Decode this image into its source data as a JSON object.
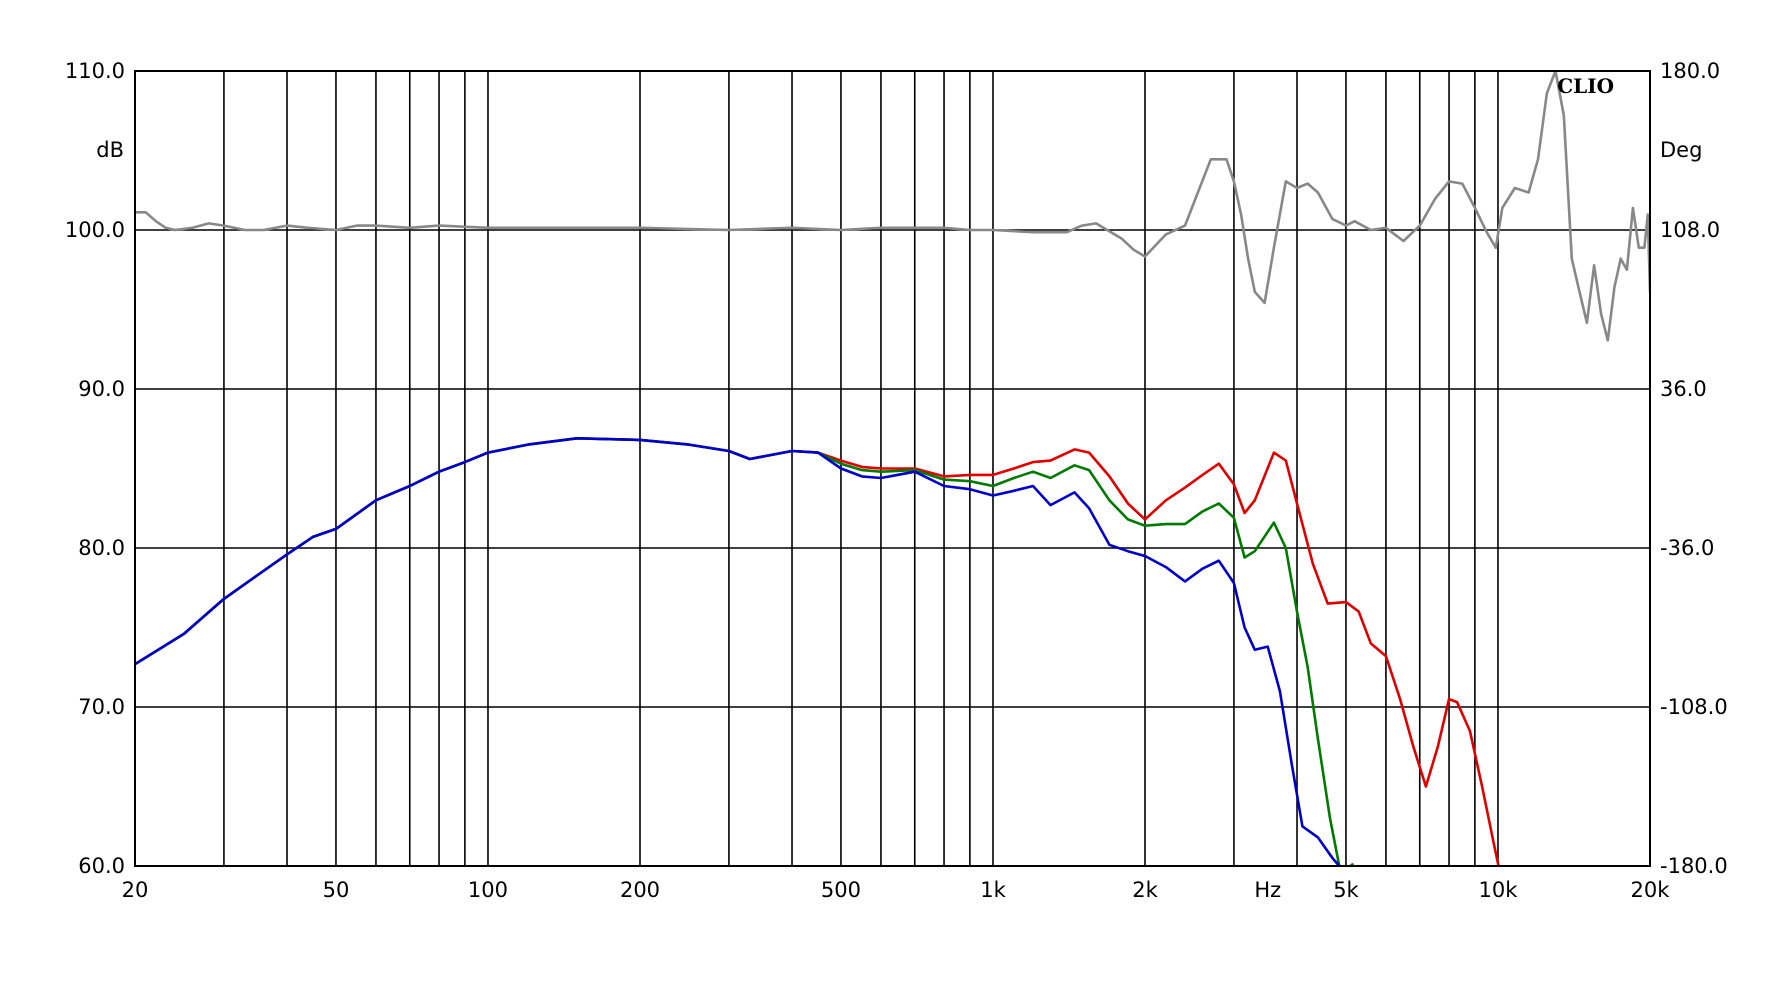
{
  "chart_data": {
    "type": "line",
    "brand": "CLIO",
    "x_scale": "log",
    "xlim": [
      20,
      20000
    ],
    "xlabel": "Hz",
    "x_ticks": [
      {
        "value": 20,
        "label": "20"
      },
      {
        "value": 50,
        "label": "50"
      },
      {
        "value": 100,
        "label": "100"
      },
      {
        "value": 200,
        "label": "200"
      },
      {
        "value": 500,
        "label": "500"
      },
      {
        "value": 1000,
        "label": "1k"
      },
      {
        "value": 2000,
        "label": "2k"
      },
      {
        "value": 5000,
        "label": "5k"
      },
      {
        "value": 10000,
        "label": "10k"
      },
      {
        "value": 20000,
        "label": "20k"
      }
    ],
    "x_unit_label": "Hz",
    "x_unit_position": 3500,
    "x_grid": [
      20,
      30,
      40,
      50,
      60,
      70,
      80,
      90,
      100,
      200,
      300,
      400,
      500,
      600,
      700,
      800,
      900,
      1000,
      2000,
      3000,
      4000,
      5000,
      6000,
      7000,
      8000,
      9000,
      10000,
      20000
    ],
    "y_left": {
      "label": "dB",
      "range": [
        60,
        110
      ],
      "ticks": [
        {
          "value": 110,
          "label": "110.0"
        },
        {
          "value": 100,
          "label": "100.0"
        },
        {
          "value": 90,
          "label": "90.0"
        },
        {
          "value": 80,
          "label": "80.0"
        },
        {
          "value": 70,
          "label": "70.0"
        },
        {
          "value": 60,
          "label": "60.0"
        }
      ]
    },
    "y_right": {
      "label": "Deg",
      "range": [
        -180,
        180
      ],
      "ticks": [
        {
          "value": 180,
          "label": "180.0"
        },
        {
          "value": 108,
          "label": "108.0"
        },
        {
          "value": 36,
          "label": "36.0"
        },
        {
          "value": -36,
          "label": "-36.0"
        },
        {
          "value": -108,
          "label": "-108.0"
        },
        {
          "value": -180,
          "label": "-180.0"
        }
      ]
    },
    "grid": true,
    "series": [
      {
        "color": "#888888",
        "axis": "right",
        "points": [
          [
            20,
            116
          ],
          [
            21,
            116
          ],
          [
            22,
            112
          ],
          [
            23,
            109
          ],
          [
            24,
            108
          ],
          [
            26,
            109
          ],
          [
            28,
            111
          ],
          [
            30,
            110
          ],
          [
            33,
            108
          ],
          [
            36,
            108
          ],
          [
            40,
            110
          ],
          [
            44,
            109
          ],
          [
            50,
            108
          ],
          [
            55,
            110
          ],
          [
            60,
            110
          ],
          [
            70,
            109
          ],
          [
            80,
            110
          ],
          [
            100,
            109
          ],
          [
            150,
            109
          ],
          [
            200,
            109
          ],
          [
            300,
            108
          ],
          [
            400,
            109
          ],
          [
            500,
            108
          ],
          [
            600,
            109
          ],
          [
            700,
            109
          ],
          [
            800,
            109
          ],
          [
            900,
            108
          ],
          [
            1000,
            108
          ],
          [
            1200,
            107
          ],
          [
            1400,
            107
          ],
          [
            1500,
            110
          ],
          [
            1600,
            111
          ],
          [
            1800,
            104
          ],
          [
            1900,
            99
          ],
          [
            2000,
            96
          ],
          [
            2200,
            106
          ],
          [
            2400,
            110
          ],
          [
            2700,
            140
          ],
          [
            2900,
            140
          ],
          [
            3000,
            130
          ],
          [
            3100,
            115
          ],
          [
            3200,
            95
          ],
          [
            3300,
            80
          ],
          [
            3450,
            75
          ],
          [
            3600,
            100
          ],
          [
            3800,
            130
          ],
          [
            4000,
            127
          ],
          [
            4200,
            129
          ],
          [
            4400,
            125
          ],
          [
            4700,
            113
          ],
          [
            5000,
            110
          ],
          [
            5200,
            112
          ],
          [
            5600,
            108
          ],
          [
            6000,
            109
          ],
          [
            6500,
            103
          ],
          [
            7000,
            110
          ],
          [
            7500,
            122
          ],
          [
            8000,
            130
          ],
          [
            8500,
            129
          ],
          [
            9000,
            118
          ],
          [
            9500,
            107
          ],
          [
            9900,
            100
          ],
          [
            10200,
            118
          ],
          [
            10800,
            127
          ],
          [
            11500,
            125
          ],
          [
            12000,
            140
          ],
          [
            12500,
            170
          ],
          [
            13000,
            180
          ],
          [
            13500,
            160
          ],
          [
            14000,
            95
          ],
          [
            14500,
            80
          ],
          [
            15000,
            66
          ],
          [
            15500,
            92
          ],
          [
            16000,
            70
          ],
          [
            16500,
            58
          ],
          [
            17000,
            82
          ],
          [
            17500,
            95
          ],
          [
            18000,
            90
          ],
          [
            18500,
            118
          ],
          [
            19000,
            100
          ],
          [
            19500,
            100
          ],
          [
            19800,
            115
          ],
          [
            20000,
            80
          ]
        ]
      },
      {
        "color": "#e00000",
        "axis": "left",
        "points": [
          [
            20,
            72.7
          ],
          [
            25,
            74.6
          ],
          [
            30,
            76.8
          ],
          [
            35,
            78.3
          ],
          [
            40,
            79.6
          ],
          [
            45,
            80.7
          ],
          [
            50,
            81.2
          ],
          [
            60,
            83.0
          ],
          [
            70,
            83.9
          ],
          [
            80,
            84.8
          ],
          [
            90,
            85.4
          ],
          [
            100,
            86.0
          ],
          [
            120,
            86.5
          ],
          [
            150,
            86.9
          ],
          [
            200,
            86.8
          ],
          [
            250,
            86.5
          ],
          [
            300,
            86.1
          ],
          [
            330,
            85.6
          ],
          [
            400,
            86.1
          ],
          [
            450,
            86.0
          ],
          [
            500,
            85.5
          ],
          [
            550,
            85.1
          ],
          [
            600,
            85.0
          ],
          [
            700,
            85.0
          ],
          [
            800,
            84.5
          ],
          [
            900,
            84.6
          ],
          [
            1000,
            84.6
          ],
          [
            1100,
            85.0
          ],
          [
            1200,
            85.4
          ],
          [
            1300,
            85.5
          ],
          [
            1450,
            86.2
          ],
          [
            1550,
            86.0
          ],
          [
            1700,
            84.5
          ],
          [
            1850,
            82.8
          ],
          [
            2000,
            81.8
          ],
          [
            2200,
            83.0
          ],
          [
            2400,
            83.8
          ],
          [
            2600,
            84.6
          ],
          [
            2800,
            85.3
          ],
          [
            3000,
            84.0
          ],
          [
            3150,
            82.2
          ],
          [
            3300,
            83.0
          ],
          [
            3600,
            86.0
          ],
          [
            3800,
            85.5
          ],
          [
            4000,
            82.8
          ],
          [
            4300,
            79.0
          ],
          [
            4600,
            76.5
          ],
          [
            5000,
            76.6
          ],
          [
            5300,
            76.0
          ],
          [
            5600,
            74.0
          ],
          [
            6000,
            73.2
          ],
          [
            6400,
            70.5
          ],
          [
            6800,
            67.5
          ],
          [
            7200,
            65.0
          ],
          [
            7600,
            67.5
          ],
          [
            8000,
            70.5
          ],
          [
            8300,
            70.3
          ],
          [
            8800,
            68.5
          ],
          [
            9300,
            65.0
          ],
          [
            9800,
            61.5
          ],
          [
            10100,
            59.5
          ]
        ]
      },
      {
        "color": "#007a00",
        "axis": "left",
        "points": [
          [
            20,
            72.7
          ],
          [
            25,
            74.6
          ],
          [
            30,
            76.8
          ],
          [
            35,
            78.3
          ],
          [
            40,
            79.6
          ],
          [
            45,
            80.7
          ],
          [
            50,
            81.2
          ],
          [
            60,
            83.0
          ],
          [
            70,
            83.9
          ],
          [
            80,
            84.8
          ],
          [
            90,
            85.4
          ],
          [
            100,
            86.0
          ],
          [
            120,
            86.5
          ],
          [
            150,
            86.9
          ],
          [
            200,
            86.8
          ],
          [
            250,
            86.5
          ],
          [
            300,
            86.1
          ],
          [
            330,
            85.6
          ],
          [
            400,
            86.1
          ],
          [
            450,
            86.0
          ],
          [
            500,
            85.3
          ],
          [
            550,
            84.9
          ],
          [
            600,
            84.8
          ],
          [
            700,
            84.9
          ],
          [
            800,
            84.3
          ],
          [
            900,
            84.2
          ],
          [
            1000,
            83.9
          ],
          [
            1100,
            84.4
          ],
          [
            1200,
            84.8
          ],
          [
            1300,
            84.4
          ],
          [
            1450,
            85.2
          ],
          [
            1550,
            84.9
          ],
          [
            1700,
            83.0
          ],
          [
            1850,
            81.8
          ],
          [
            2000,
            81.4
          ],
          [
            2200,
            81.5
          ],
          [
            2400,
            81.5
          ],
          [
            2600,
            82.3
          ],
          [
            2800,
            82.8
          ],
          [
            3000,
            81.9
          ],
          [
            3150,
            79.4
          ],
          [
            3300,
            79.8
          ],
          [
            3600,
            81.6
          ],
          [
            3800,
            80.0
          ],
          [
            4000,
            76.0
          ],
          [
            4200,
            72.5
          ],
          [
            4400,
            68.0
          ],
          [
            4650,
            63.0
          ],
          [
            4850,
            60.0
          ],
          [
            5000,
            59.8
          ],
          [
            5150,
            60.1
          ]
        ]
      },
      {
        "color": "#0000c8",
        "axis": "left",
        "points": [
          [
            20,
            72.7
          ],
          [
            25,
            74.6
          ],
          [
            30,
            76.8
          ],
          [
            35,
            78.3
          ],
          [
            40,
            79.6
          ],
          [
            45,
            80.7
          ],
          [
            50,
            81.2
          ],
          [
            60,
            83.0
          ],
          [
            70,
            83.9
          ],
          [
            80,
            84.8
          ],
          [
            90,
            85.4
          ],
          [
            100,
            86.0
          ],
          [
            120,
            86.5
          ],
          [
            150,
            86.9
          ],
          [
            200,
            86.8
          ],
          [
            250,
            86.5
          ],
          [
            300,
            86.1
          ],
          [
            330,
            85.6
          ],
          [
            400,
            86.1
          ],
          [
            450,
            86.0
          ],
          [
            500,
            85.0
          ],
          [
            550,
            84.5
          ],
          [
            600,
            84.4
          ],
          [
            700,
            84.8
          ],
          [
            800,
            83.9
          ],
          [
            900,
            83.7
          ],
          [
            1000,
            83.3
          ],
          [
            1100,
            83.6
          ],
          [
            1200,
            83.9
          ],
          [
            1300,
            82.7
          ],
          [
            1450,
            83.5
          ],
          [
            1550,
            82.5
          ],
          [
            1700,
            80.2
          ],
          [
            1850,
            79.8
          ],
          [
            2000,
            79.5
          ],
          [
            2200,
            78.8
          ],
          [
            2400,
            77.9
          ],
          [
            2600,
            78.7
          ],
          [
            2800,
            79.2
          ],
          [
            3000,
            77.8
          ],
          [
            3150,
            75.0
          ],
          [
            3300,
            73.6
          ],
          [
            3500,
            73.8
          ],
          [
            3700,
            71.0
          ],
          [
            3900,
            66.5
          ],
          [
            4100,
            62.5
          ],
          [
            4400,
            61.8
          ],
          [
            4700,
            60.5
          ],
          [
            4850,
            60.0
          ]
        ]
      }
    ]
  }
}
